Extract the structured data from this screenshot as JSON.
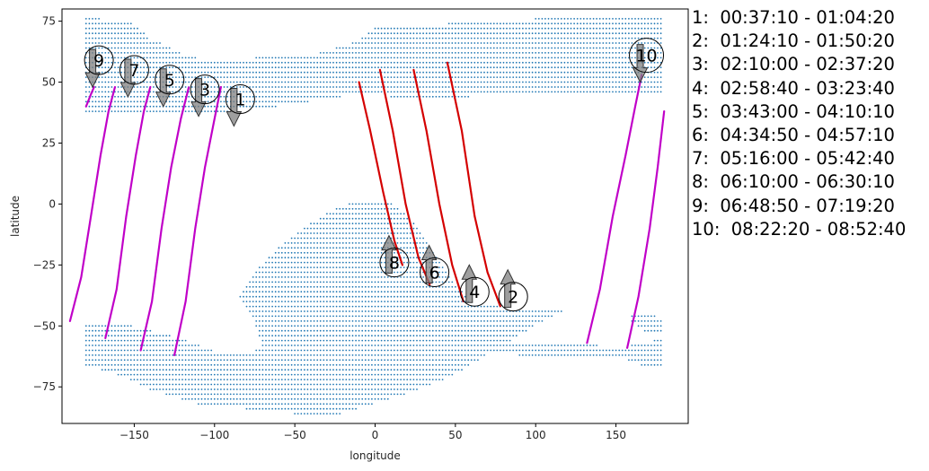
{
  "chart_data": {
    "type": "scatter",
    "title": "",
    "xlabel": "longitude",
    "ylabel": "latitude",
    "xlim": [
      -195,
      195
    ],
    "ylim": [
      -90,
      80
    ],
    "xticks": [
      -150,
      -100,
      -50,
      0,
      50,
      100,
      150
    ],
    "yticks": [
      -75,
      -50,
      -25,
      0,
      25,
      50,
      75
    ],
    "grid": false,
    "colors": {
      "land_points": "#1f77b4",
      "descending_track": "#d40000",
      "ascending_track": "#c000c8",
      "arrow": "#7f7f7f"
    },
    "legend": {
      "placement": "right-outside",
      "entries": [
        {
          "label": "1:  00:37:10 - 01:04:20"
        },
        {
          "label": "2:  01:24:10 - 01:50:20"
        },
        {
          "label": "3:  02:10:00 - 02:37:20"
        },
        {
          "label": "4:  02:58:40 - 03:23:40"
        },
        {
          "label": "5:  03:43:00 - 04:10:10"
        },
        {
          "label": "6:  04:34:50 - 04:57:10"
        },
        {
          "label": "7:  05:16:00 - 05:42:40"
        },
        {
          "label": "8:  06:10:00 - 06:30:10"
        },
        {
          "label": "9:  06:48:50 - 07:19:20"
        },
        {
          "label": "10:  08:22:20 - 08:52:40"
        }
      ]
    },
    "land_regions": [
      [
        [
          -180,
          77
        ],
        [
          -150,
          74
        ],
        [
          -140,
          68
        ],
        [
          -120,
          62
        ],
        [
          -100,
          58
        ],
        [
          -75,
          60
        ],
        [
          -40,
          61
        ],
        [
          -10,
          67
        ],
        [
          0,
          72
        ],
        [
          30,
          73
        ],
        [
          60,
          75
        ],
        [
          100,
          76
        ],
        [
          140,
          77
        ],
        [
          180,
          77
        ],
        [
          180,
          45
        ],
        [
          140,
          44
        ],
        [
          100,
          46
        ],
        [
          60,
          44
        ],
        [
          30,
          42
        ],
        [
          0,
          45
        ],
        [
          -20,
          44
        ],
        [
          -40,
          42
        ],
        [
          -60,
          40
        ],
        [
          -90,
          38
        ],
        [
          -120,
          36
        ],
        [
          -150,
          37
        ],
        [
          -180,
          38
        ]
      ],
      [
        [
          -10,
          2
        ],
        [
          10,
          1
        ],
        [
          20,
          -5
        ],
        [
          30,
          -12
        ],
        [
          40,
          -22
        ],
        [
          50,
          -33
        ],
        [
          60,
          -40
        ],
        [
          80,
          -42
        ],
        [
          100,
          -42
        ],
        [
          122,
          -42
        ],
        [
          100,
          -50
        ],
        [
          80,
          -58
        ],
        [
          60,
          -66
        ],
        [
          40,
          -73
        ],
        [
          20,
          -78
        ],
        [
          0,
          -82
        ],
        [
          -20,
          -86
        ],
        [
          -50,
          -86
        ],
        [
          -80,
          -84
        ],
        [
          -110,
          -82
        ],
        [
          -140,
          -76
        ],
        [
          -160,
          -70
        ],
        [
          -180,
          -66
        ],
        [
          -180,
          -48
        ],
        [
          -150,
          -50
        ],
        [
          -120,
          -55
        ],
        [
          -100,
          -60
        ],
        [
          -80,
          -62
        ],
        [
          -70,
          -58
        ],
        [
          -75,
          -48
        ],
        [
          -85,
          -38
        ],
        [
          -75,
          -28
        ],
        [
          -60,
          -18
        ],
        [
          -40,
          -8
        ],
        [
          -25,
          -2
        ]
      ],
      [
        [
          60,
          -56
        ],
        [
          90,
          -56
        ],
        [
          120,
          -56
        ],
        [
          140,
          -58
        ],
        [
          160,
          -58
        ],
        [
          180,
          -55
        ],
        [
          180,
          -66
        ],
        [
          165,
          -66
        ],
        [
          150,
          -62
        ],
        [
          120,
          -62
        ],
        [
          90,
          -62
        ],
        [
          60,
          -58
        ]
      ],
      [
        [
          160,
          -44
        ],
        [
          172,
          -45
        ],
        [
          180,
          -48
        ],
        [
          180,
          -54
        ],
        [
          168,
          -52
        ],
        [
          160,
          -48
        ]
      ]
    ],
    "tracks": [
      {
        "pass": 1,
        "direction": "ascending",
        "points": [
          [
            -125,
            -62
          ],
          [
            -118,
            -40
          ],
          [
            -112,
            -10
          ],
          [
            -106,
            15
          ],
          [
            -100,
            35
          ],
          [
            -96,
            48
          ]
        ]
      },
      {
        "pass": 2,
        "direction": "descending",
        "points": [
          [
            45,
            58
          ],
          [
            54,
            30
          ],
          [
            62,
            -5
          ],
          [
            70,
            -28
          ],
          [
            78,
            -42
          ]
        ]
      },
      {
        "pass": 3,
        "direction": "ascending",
        "points": [
          [
            -146,
            -60
          ],
          [
            -139,
            -40
          ],
          [
            -133,
            -10
          ],
          [
            -127,
            15
          ],
          [
            -121,
            35
          ],
          [
            -116,
            48
          ]
        ]
      },
      {
        "pass": 4,
        "direction": "descending",
        "points": [
          [
            24,
            55
          ],
          [
            32,
            30
          ],
          [
            40,
            0
          ],
          [
            48,
            -25
          ],
          [
            55,
            -40
          ]
        ]
      },
      {
        "pass": 5,
        "direction": "ascending",
        "points": [
          [
            -168,
            -55
          ],
          [
            -161,
            -35
          ],
          [
            -155,
            -5
          ],
          [
            -149,
            20
          ],
          [
            -144,
            38
          ],
          [
            -140,
            48
          ]
        ]
      },
      {
        "pass": 6,
        "direction": "descending",
        "points": [
          [
            3,
            55
          ],
          [
            11,
            30
          ],
          [
            19,
            0
          ],
          [
            27,
            -22
          ],
          [
            34,
            -33
          ]
        ]
      },
      {
        "pass": 7,
        "direction": "ascending",
        "points": [
          [
            -190,
            -48
          ],
          [
            -183,
            -30
          ],
          [
            -177,
            -5
          ],
          [
            -171,
            20
          ],
          [
            -166,
            38
          ],
          [
            -162,
            48
          ]
        ]
      },
      {
        "pass": 8,
        "direction": "descending",
        "points": [
          [
            -10,
            50
          ],
          [
            -3,
            30
          ],
          [
            5,
            5
          ],
          [
            12,
            -15
          ],
          [
            17,
            -25
          ]
        ]
      },
      {
        "pass": 9,
        "direction": "ascending",
        "points": [
          [
            -180,
            40
          ],
          [
            -177,
            45
          ],
          [
            -175,
            48
          ]
        ]
      },
      {
        "pass": 10,
        "direction": "ascending",
        "points": [
          [
            132,
            -57
          ],
          [
            140,
            -35
          ],
          [
            148,
            -5
          ],
          [
            156,
            20
          ],
          [
            162,
            40
          ],
          [
            166,
            53
          ]
        ]
      },
      {
        "pass": 10,
        "direction": "ascending",
        "points": [
          [
            157,
            -59
          ],
          [
            164,
            -38
          ],
          [
            171,
            -10
          ],
          [
            176,
            15
          ],
          [
            180,
            38
          ]
        ]
      }
    ],
    "markers": [
      {
        "label": "1",
        "x": -84,
        "y": 43,
        "arrow": "down"
      },
      {
        "label": "2",
        "x": 86,
        "y": -38,
        "arrow": "up"
      },
      {
        "label": "3",
        "x": -106,
        "y": 47,
        "arrow": "down"
      },
      {
        "label": "4",
        "x": 62,
        "y": -36,
        "arrow": "up"
      },
      {
        "label": "5",
        "x": -128,
        "y": 51,
        "arrow": "down"
      },
      {
        "label": "6",
        "x": 37,
        "y": -28,
        "arrow": "up"
      },
      {
        "label": "7",
        "x": -150,
        "y": 55,
        "arrow": "down"
      },
      {
        "label": "8",
        "x": 12,
        "y": -24,
        "arrow": "up"
      },
      {
        "label": "9",
        "x": -172,
        "y": 59,
        "arrow": "down"
      },
      {
        "label": "10",
        "x": 169,
        "y": 61,
        "arrow": "down"
      }
    ]
  }
}
